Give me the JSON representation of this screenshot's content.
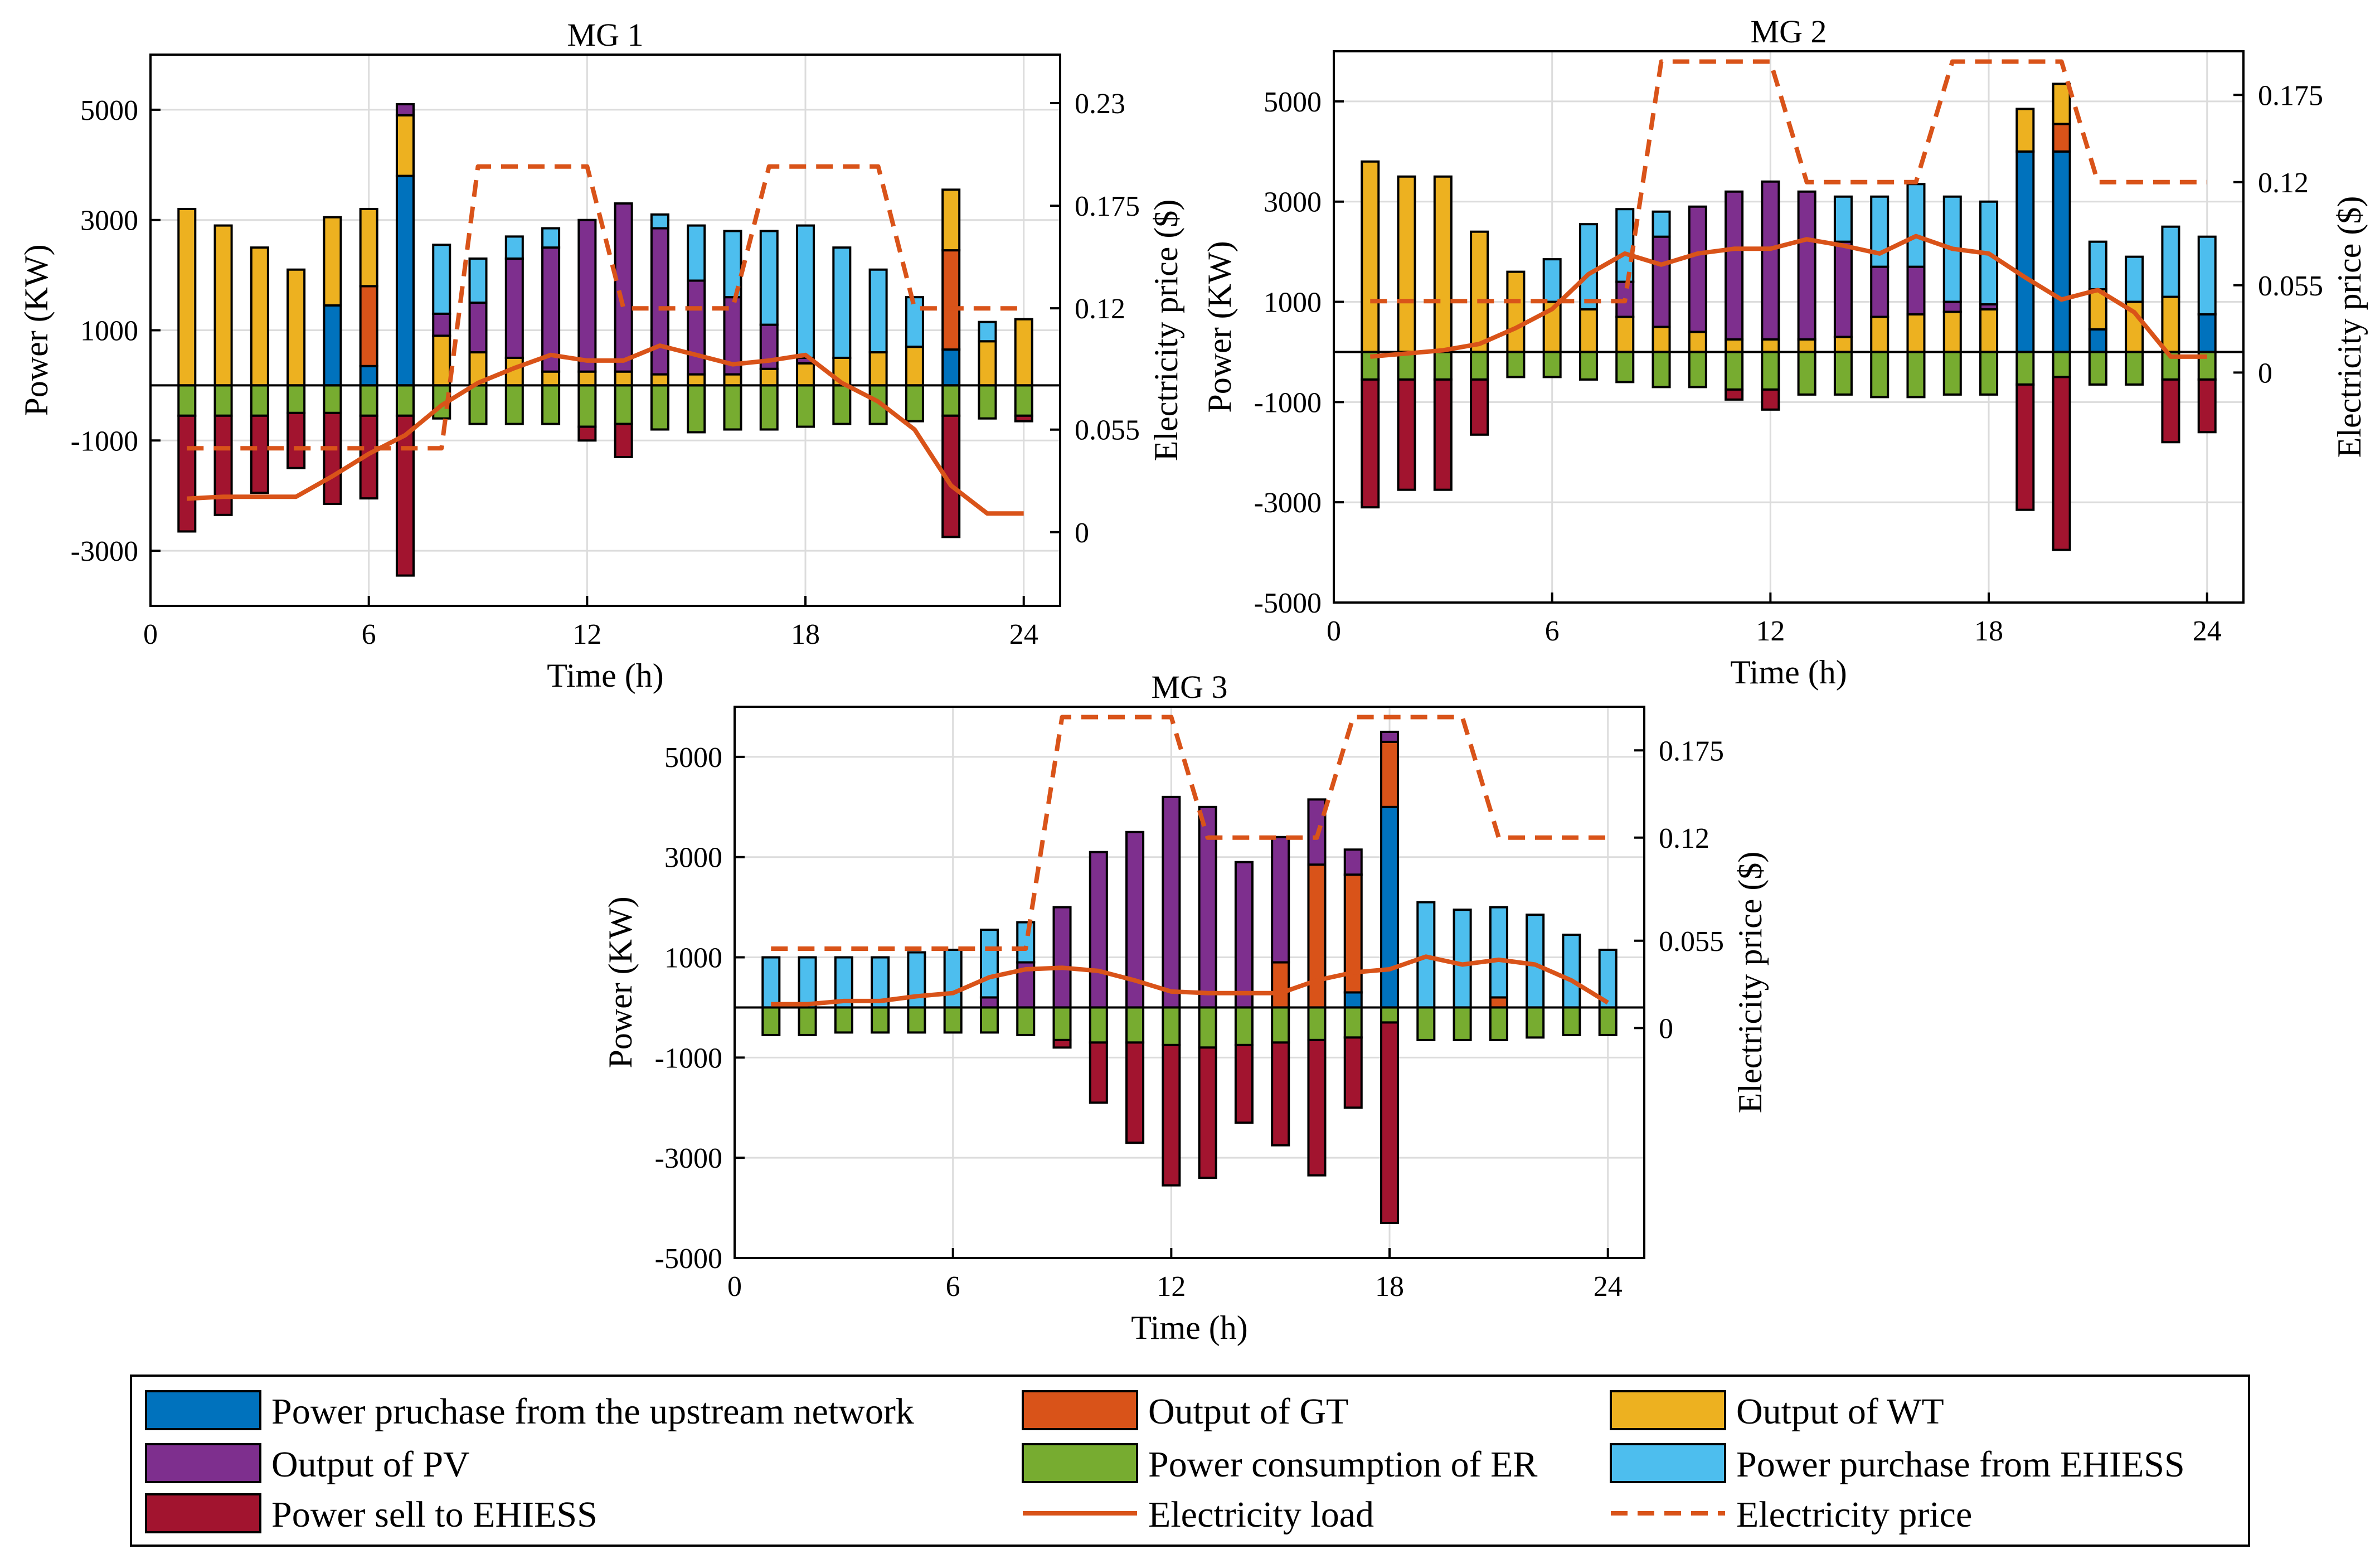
{
  "chart_data": [
    {
      "type": "bar",
      "title": "MG 1",
      "xlabel": "Time (h)",
      "ylabel": "Power (KW)",
      "y2label": "Electricity price ($)",
      "xlim": [
        0,
        25
      ],
      "ylim": [
        -4000,
        6000
      ],
      "y2lim": [
        -0.0395,
        0.256
      ],
      "xticks": [
        0,
        6,
        12,
        18,
        24
      ],
      "yticks": [
        -3000,
        -1000,
        1000,
        3000,
        5000
      ],
      "y2ticks": [
        0,
        0.055,
        0.12,
        0.175,
        0.23
      ],
      "x": [
        1,
        2,
        3,
        4,
        5,
        6,
        7,
        8,
        9,
        10,
        11,
        12,
        13,
        14,
        15,
        16,
        17,
        18,
        19,
        20,
        21,
        22,
        23,
        24
      ],
      "positive_series": [
        {
          "name": "Power pruchase from the upstream network",
          "values": [
            0,
            0,
            0,
            0,
            1450,
            350,
            3800,
            0,
            0,
            0,
            0,
            0,
            0,
            0,
            0,
            0,
            0,
            0,
            0,
            0,
            0,
            650,
            0,
            0
          ]
        },
        {
          "name": "Output of GT",
          "values": [
            0,
            0,
            0,
            0,
            0,
            1450,
            0,
            0,
            0,
            0,
            0,
            0,
            0,
            0,
            0,
            0,
            0,
            0,
            0,
            0,
            0,
            1800,
            0,
            0
          ]
        },
        {
          "name": "Output of WT",
          "values": [
            3200,
            2900,
            2500,
            2100,
            1600,
            1400,
            1100,
            900,
            600,
            500,
            250,
            250,
            250,
            200,
            200,
            200,
            300,
            400,
            500,
            600,
            700,
            1100,
            800,
            1200
          ]
        },
        {
          "name": "Output of PV",
          "values": [
            0,
            0,
            0,
            0,
            0,
            0,
            200,
            400,
            900,
            1800,
            2250,
            2750,
            3050,
            2650,
            1700,
            1400,
            800,
            100,
            0,
            0,
            0,
            0,
            0,
            0
          ]
        },
        {
          "name": "Power purchase from EHIESS",
          "values": [
            0,
            0,
            0,
            0,
            0,
            0,
            0,
            1250,
            800,
            400,
            350,
            0,
            0,
            250,
            1000,
            1200,
            1700,
            2400,
            2000,
            1500,
            900,
            0,
            350,
            0
          ]
        }
      ],
      "negative_series": [
        {
          "name": "Power consumption of ER",
          "values": [
            -550,
            -550,
            -550,
            -500,
            -500,
            -550,
            -550,
            -600,
            -700,
            -700,
            -700,
            -750,
            -700,
            -800,
            -850,
            -800,
            -800,
            -750,
            -700,
            -700,
            -650,
            -550,
            -600,
            -550
          ]
        },
        {
          "name": "Power sell to EHIESS",
          "values": [
            -2100,
            -1800,
            -1400,
            -1000,
            -1650,
            -1500,
            -2900,
            0,
            0,
            0,
            0,
            -250,
            -600,
            0,
            0,
            0,
            0,
            0,
            0,
            0,
            0,
            -2200,
            0,
            -100
          ]
        }
      ],
      "line_series": [
        {
          "name": "Electricity load",
          "axis": "right",
          "values": [
            0.018,
            0.019,
            0.019,
            0.019,
            0.03,
            0.042,
            0.052,
            0.068,
            0.08,
            0.088,
            0.095,
            0.092,
            0.092,
            0.1,
            0.095,
            0.09,
            0.092,
            0.095,
            0.08,
            0.07,
            0.055,
            0.025,
            0.01,
            0.01
          ]
        },
        {
          "name": "Electricity price",
          "axis": "right",
          "values": [
            0.045,
            0.045,
            0.045,
            0.045,
            0.045,
            0.045,
            0.045,
            0.045,
            0.196,
            0.196,
            0.196,
            0.196,
            0.12,
            0.12,
            0.12,
            0.12,
            0.196,
            0.196,
            0.196,
            0.196,
            0.12,
            0.12,
            0.12,
            0.12
          ]
        }
      ]
    },
    {
      "type": "bar",
      "title": "MG 2",
      "xlabel": "Time (h)",
      "ylabel": "Power (KW)",
      "y2label": "Electricity price ($)",
      "xlim": [
        0,
        25
      ],
      "ylim": [
        -5000,
        6000
      ],
      "y2lim": [
        -0.145,
        0.2025
      ],
      "xticks": [
        0,
        6,
        12,
        18,
        24
      ],
      "yticks": [
        -5000,
        -3000,
        -1000,
        1000,
        3000,
        5000
      ],
      "y2ticks": [
        0,
        0.055,
        0.12,
        0.175
      ],
      "x": [
        1,
        2,
        3,
        4,
        5,
        6,
        7,
        8,
        9,
        10,
        11,
        12,
        13,
        14,
        15,
        16,
        17,
        18,
        19,
        20,
        21,
        22,
        23,
        24
      ],
      "positive_series": [
        {
          "name": "Power pruchase from the upstream network",
          "values": [
            0,
            0,
            0,
            0,
            0,
            0,
            0,
            0,
            0,
            0,
            0,
            0,
            0,
            0,
            0,
            0,
            0,
            0,
            4000,
            4000,
            450,
            0,
            0,
            750
          ]
        },
        {
          "name": "Output of GT",
          "values": [
            0,
            0,
            0,
            0,
            0,
            0,
            0,
            0,
            0,
            0,
            0,
            0,
            0,
            0,
            0,
            0,
            0,
            0,
            0,
            550,
            0,
            0,
            0,
            0
          ]
        },
        {
          "name": "Output of WT",
          "values": [
            3800,
            3500,
            3500,
            2400,
            1600,
            1000,
            850,
            700,
            500,
            400,
            250,
            250,
            250,
            300,
            700,
            750,
            800,
            850,
            850,
            800,
            800,
            1000,
            1100,
            0
          ]
        },
        {
          "name": "Output of PV",
          "values": [
            0,
            0,
            0,
            0,
            0,
            0,
            0,
            700,
            1800,
            2500,
            2950,
            3150,
            2950,
            1900,
            1000,
            950,
            200,
            100,
            0,
            0,
            0,
            0,
            0,
            0
          ]
        },
        {
          "name": "Power purchase from EHIESS",
          "values": [
            0,
            0,
            0,
            0,
            0,
            850,
            1700,
            1450,
            500,
            0,
            0,
            0,
            0,
            900,
            1400,
            1650,
            2100,
            2050,
            0,
            0,
            950,
            900,
            1400,
            1550
          ]
        }
      ],
      "negative_series": [
        {
          "name": "Power consumption of ER",
          "values": [
            -550,
            -550,
            -550,
            -550,
            -500,
            -500,
            -550,
            -600,
            -700,
            -700,
            -750,
            -750,
            -850,
            -850,
            -900,
            -900,
            -850,
            -850,
            -650,
            -500,
            -650,
            -650,
            -550,
            -550
          ]
        },
        {
          "name": "Power sell to EHIESS",
          "values": [
            -2550,
            -2200,
            -2200,
            -1100,
            0,
            0,
            0,
            0,
            0,
            0,
            -200,
            -400,
            0,
            0,
            0,
            0,
            0,
            0,
            -2500,
            -3450,
            0,
            0,
            -1250,
            -1050
          ]
        }
      ],
      "line_series": [
        {
          "name": "Electricity load",
          "axis": "right",
          "values": [
            0.01,
            0.012,
            0.014,
            0.018,
            0.028,
            0.04,
            0.062,
            0.075,
            0.068,
            0.075,
            0.078,
            0.078,
            0.084,
            0.08,
            0.075,
            0.086,
            0.078,
            0.075,
            0.06,
            0.046,
            0.052,
            0.038,
            0.01,
            0.01
          ]
        },
        {
          "name": "Electricity price",
          "axis": "right",
          "values": [
            0.045,
            0.045,
            0.045,
            0.045,
            0.045,
            0.045,
            0.045,
            0.045,
            0.196,
            0.196,
            0.196,
            0.196,
            0.12,
            0.12,
            0.12,
            0.12,
            0.196,
            0.196,
            0.196,
            0.196,
            0.12,
            0.12,
            0.12,
            0.12
          ]
        }
      ]
    },
    {
      "type": "bar",
      "title": "MG 3",
      "xlabel": "Time (h)",
      "ylabel": "Power (KW)",
      "y2label": "Electricity price ($)",
      "xlim": [
        0,
        25
      ],
      "ylim": [
        -5000,
        6000
      ],
      "y2lim": [
        -0.145,
        0.2025
      ],
      "xticks": [
        0,
        6,
        12,
        18,
        24
      ],
      "yticks": [
        -5000,
        -3000,
        -1000,
        1000,
        3000,
        5000
      ],
      "y2ticks": [
        0,
        0.055,
        0.12,
        0.175
      ],
      "x": [
        1,
        2,
        3,
        4,
        5,
        6,
        7,
        8,
        9,
        10,
        11,
        12,
        13,
        14,
        15,
        16,
        17,
        18,
        19,
        20,
        21,
        22,
        23,
        24
      ],
      "positive_series": [
        {
          "name": "Power pruchase from the upstream network",
          "values": [
            0,
            0,
            0,
            0,
            0,
            0,
            0,
            0,
            0,
            0,
            0,
            0,
            0,
            0,
            0,
            0,
            300,
            4000,
            0,
            0,
            0,
            0,
            0,
            0
          ]
        },
        {
          "name": "Output of GT",
          "values": [
            0,
            0,
            0,
            0,
            0,
            0,
            0,
            0,
            0,
            0,
            0,
            0,
            0,
            0,
            900,
            2850,
            2350,
            1300,
            0,
            0,
            200,
            0,
            0,
            0
          ]
        },
        {
          "name": "Output of WT",
          "values": [
            0,
            0,
            0,
            0,
            0,
            0,
            0,
            0,
            0,
            0,
            0,
            0,
            0,
            0,
            0,
            0,
            0,
            0,
            0,
            0,
            0,
            0,
            0,
            0
          ]
        },
        {
          "name": "Output of PV",
          "values": [
            0,
            0,
            0,
            0,
            0,
            0,
            200,
            900,
            2000,
            3100,
            3500,
            4200,
            4000,
            2900,
            2500,
            1300,
            500,
            200,
            0,
            0,
            0,
            0,
            0,
            0
          ]
        },
        {
          "name": "Power purchase from EHIESS",
          "values": [
            1000,
            1000,
            1000,
            1000,
            1100,
            1150,
            1350,
            800,
            0,
            0,
            0,
            0,
            0,
            0,
            0,
            0,
            0,
            0,
            2100,
            1950,
            1800,
            1850,
            1450,
            1150
          ]
        }
      ],
      "negative_series": [
        {
          "name": "Power consumption of ER",
          "values": [
            -550,
            -550,
            -500,
            -500,
            -500,
            -500,
            -500,
            -550,
            -650,
            -700,
            -700,
            -750,
            -800,
            -750,
            -700,
            -650,
            -600,
            -300,
            -650,
            -650,
            -650,
            -600,
            -550,
            -550
          ]
        },
        {
          "name": "Power sell to EHIESS",
          "values": [
            0,
            0,
            0,
            0,
            0,
            0,
            0,
            0,
            -150,
            -1200,
            -2000,
            -2800,
            -2600,
            -1550,
            -2050,
            -2700,
            -1400,
            -4000,
            0,
            0,
            0,
            0,
            0,
            0
          ]
        }
      ],
      "line_series": [
        {
          "name": "Electricity load",
          "axis": "right",
          "values": [
            0.015,
            0.015,
            0.017,
            0.017,
            0.02,
            0.022,
            0.032,
            0.037,
            0.038,
            0.036,
            0.03,
            0.023,
            0.022,
            0.022,
            0.022,
            0.03,
            0.035,
            0.037,
            0.045,
            0.04,
            0.043,
            0.04,
            0.03,
            0.016
          ]
        },
        {
          "name": "Electricity price",
          "axis": "right",
          "values": [
            0.05,
            0.05,
            0.05,
            0.05,
            0.05,
            0.05,
            0.05,
            0.05,
            0.196,
            0.196,
            0.196,
            0.196,
            0.12,
            0.12,
            0.12,
            0.12,
            0.196,
            0.196,
            0.196,
            0.196,
            0.12,
            0.12,
            0.12,
            0.12
          ]
        }
      ]
    }
  ],
  "legend": {
    "items": [
      {
        "name": "Power pruchase from the upstream network",
        "kind": "patch",
        "color": "#0072BD"
      },
      {
        "name": "Output of GT",
        "kind": "patch",
        "color": "#D95319"
      },
      {
        "name": "Output of WT",
        "kind": "patch",
        "color": "#EDB120"
      },
      {
        "name": "Output of PV",
        "kind": "patch",
        "color": "#7E2F8E"
      },
      {
        "name": "Power consumption of ER",
        "kind": "patch",
        "color": "#77AC30"
      },
      {
        "name": "Power purchase from EHIESS",
        "kind": "patch",
        "color": "#4DBEEE"
      },
      {
        "name": "Power sell to EHIESS",
        "kind": "patch",
        "color": "#A2142F"
      },
      {
        "name": "Electricity load",
        "kind": "solid",
        "color": "#D95319"
      },
      {
        "name": "Electricity price",
        "kind": "dashed",
        "color": "#D95319"
      }
    ]
  }
}
